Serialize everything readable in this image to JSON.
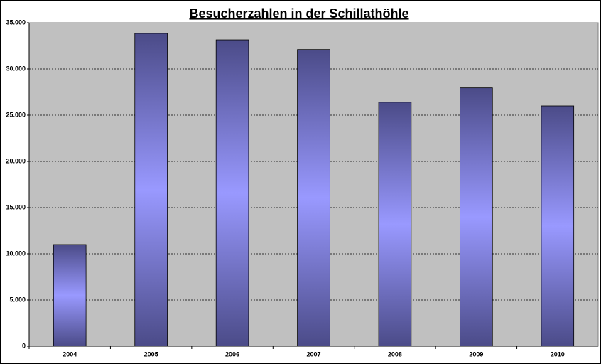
{
  "chart_data": {
    "type": "bar",
    "title": "Besucherzahlen in der Schillathöhle",
    "categories": [
      "2004",
      "2005",
      "2006",
      "2007",
      "2008",
      "2009",
      "2010"
    ],
    "values": [
      11000,
      33850,
      33150,
      32100,
      26400,
      27950,
      26000
    ],
    "color": "#9999ff",
    "ylim": [
      0,
      35000
    ],
    "yticks": [
      0,
      {
        "value": 5000,
        "label": "5.000"
      },
      {
        "value": 10000,
        "label": "10.000"
      },
      {
        "value": 15000,
        "label": "15.000"
      },
      {
        "value": 20000,
        "label": "20.000"
      },
      {
        "value": 25000,
        "label": "25.000"
      },
      {
        "value": 30000,
        "label": "30.000"
      },
      {
        "value": 35000,
        "label": "35.000"
      }
    ],
    "grid": true
  }
}
